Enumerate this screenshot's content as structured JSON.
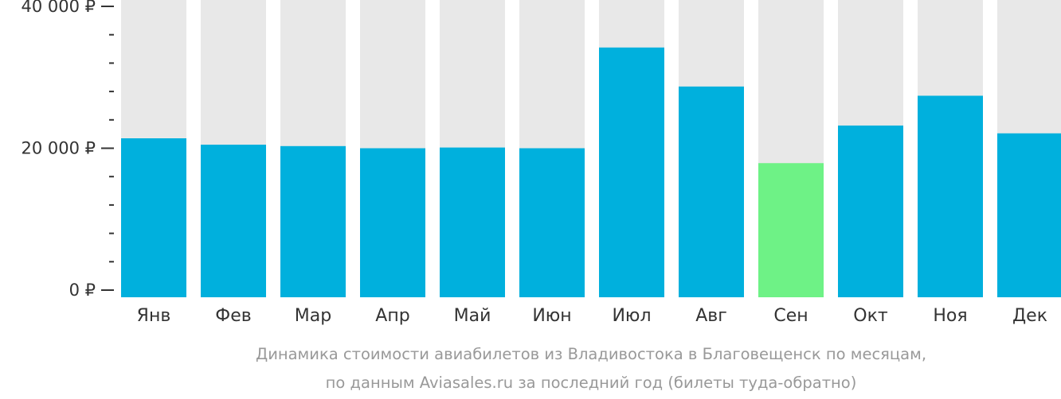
{
  "chart_data": {
    "type": "bar",
    "categories": [
      "Янв",
      "Фев",
      "Мар",
      "Апр",
      "Май",
      "Июн",
      "Июл",
      "Авг",
      "Сен",
      "Окт",
      "Ноя",
      "Дек"
    ],
    "values": [
      21400,
      20500,
      20300,
      20000,
      20100,
      20000,
      34200,
      28700,
      17900,
      23200,
      27400,
      22100
    ],
    "highlight_index": 8,
    "ylim": [
      0,
      42000
    ],
    "yticks": [
      {
        "value": 0,
        "label": "0 ₽"
      },
      {
        "value": 20000,
        "label": "20 000 ₽"
      },
      {
        "value": 40000,
        "label": "40 000 ₽"
      }
    ],
    "minor_tick_step": 4000,
    "caption_lines": [
      "Динамика стоимости авиабилетов из Владивостока в Благовещенск по месяцам,",
      "по данным Aviasales.ru за последний год (билеты туда-обратно)"
    ],
    "colors": {
      "bar": "#00b0dd",
      "highlight": "#6ef286",
      "background_bar": "#e8e8e8",
      "axis_text": "#333333",
      "caption": "#999999"
    }
  }
}
